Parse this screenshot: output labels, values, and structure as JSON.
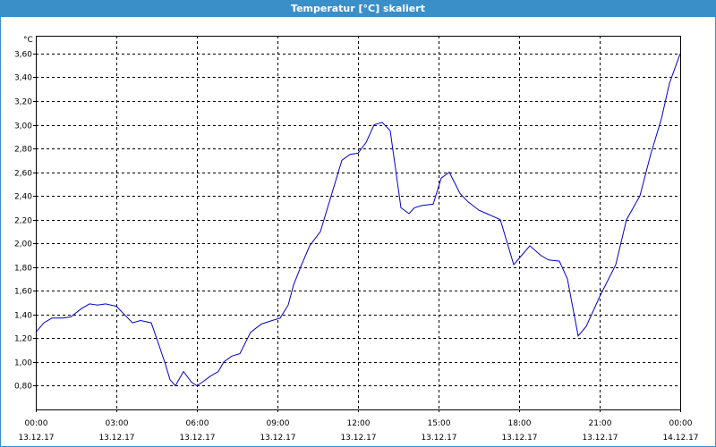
{
  "window": {
    "title": "Temperatur [°C] skaliert"
  },
  "chart_data": {
    "type": "line",
    "ylabel": "°C",
    "xlabel": "",
    "ylim": [
      0.6,
      3.75
    ],
    "xlim": [
      0,
      24
    ],
    "grid": true,
    "line_color": "#0000cc",
    "y_ticks": [
      0.8,
      1.0,
      1.2,
      1.4,
      1.6,
      1.8,
      2.0,
      2.2,
      2.4,
      2.6,
      2.8,
      3.0,
      3.2,
      3.4,
      3.6
    ],
    "y_tick_labels": [
      "0,80",
      "1,00",
      "1,20",
      "1,40",
      "1,60",
      "1,80",
      "2,00",
      "2,20",
      "2,40",
      "2,60",
      "2,80",
      "3,00",
      "3,20",
      "3,40",
      "3,60"
    ],
    "x_ticks": [
      0,
      3,
      6,
      9,
      12,
      15,
      18,
      21,
      24
    ],
    "x_tick_labels": [
      [
        "00:00",
        "13.12.17"
      ],
      [
        "03:00",
        "13.12.17"
      ],
      [
        "06:00",
        "13.12.17"
      ],
      [
        "09:00",
        "13.12.17"
      ],
      [
        "12:00",
        "13.12.17"
      ],
      [
        "15:00",
        "13.12.17"
      ],
      [
        "18:00",
        "13.12.17"
      ],
      [
        "21:00",
        "13.12.17"
      ],
      [
        "00:00",
        "14.12.17"
      ]
    ],
    "series": [
      {
        "x": [
          0.0,
          0.3,
          0.6,
          1.0,
          1.3,
          1.7,
          2.0,
          2.3,
          2.6,
          2.8,
          3.0,
          3.3,
          3.6,
          3.9,
          4.3,
          4.5,
          4.8,
          5.0,
          5.2,
          5.5,
          5.8,
          6.0,
          6.2,
          6.5,
          6.8,
          7.0,
          7.3,
          7.6,
          8.0,
          8.4,
          8.8,
          9.1,
          9.4,
          9.6,
          9.9,
          10.2,
          10.6,
          11.0,
          11.4,
          11.7,
          12.0,
          12.3,
          12.6,
          12.9,
          13.2,
          13.6,
          13.9,
          14.1,
          14.4,
          14.8,
          15.1,
          15.4,
          15.8,
          16.1,
          16.5,
          16.8,
          17.3,
          17.8,
          18.1,
          18.4,
          18.8,
          19.1,
          19.5,
          19.8,
          20.2,
          20.5,
          21.0,
          21.6,
          22.0,
          22.5,
          22.9,
          23.3,
          23.6,
          24.0
        ],
        "y": [
          1.25,
          1.33,
          1.37,
          1.37,
          1.38,
          1.45,
          1.49,
          1.48,
          1.49,
          1.48,
          1.47,
          1.4,
          1.33,
          1.35,
          1.33,
          1.2,
          1.0,
          0.85,
          0.8,
          0.92,
          0.83,
          0.8,
          0.83,
          0.88,
          0.92,
          1.0,
          1.05,
          1.07,
          1.25,
          1.32,
          1.35,
          1.37,
          1.48,
          1.65,
          1.82,
          1.98,
          2.1,
          2.4,
          2.7,
          2.75,
          2.76,
          2.85,
          3.0,
          3.02,
          2.95,
          2.3,
          2.25,
          2.3,
          2.32,
          2.33,
          2.55,
          2.6,
          2.42,
          2.35,
          2.28,
          2.25,
          2.2,
          1.82,
          1.9,
          1.98,
          1.9,
          1.86,
          1.85,
          1.7,
          1.22,
          1.3,
          1.55,
          1.82,
          2.2,
          2.4,
          2.75,
          3.05,
          3.35,
          3.6
        ]
      }
    ]
  }
}
